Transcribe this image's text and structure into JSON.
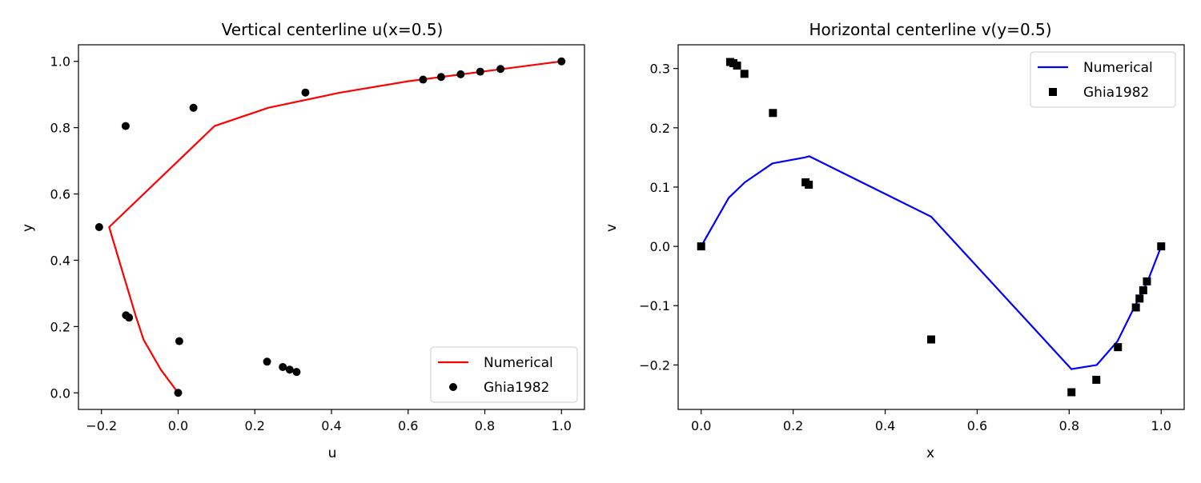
{
  "chart_data": [
    {
      "type": "line",
      "title": "Vertical centerline u(x=0.5)",
      "xlabel": "u",
      "ylabel": "y",
      "xlim": [
        -0.26,
        1.06
      ],
      "ylim": [
        -0.05,
        1.05
      ],
      "xticks": [
        "−0.2",
        "0.0",
        "0.2",
        "0.4",
        "0.6",
        "0.8",
        "1.0"
      ],
      "yticks": [
        "0.0",
        "0.2",
        "0.4",
        "0.6",
        "0.8",
        "1.0"
      ],
      "legend_position": "lower-right",
      "colors": {
        "line": "#ff0000",
        "markers": "#000000"
      },
      "series": [
        {
          "name": "Numerical",
          "kind": "line",
          "x": [
            0.0,
            -0.045,
            -0.09,
            -0.11,
            -0.18,
            0.095,
            0.235,
            0.42,
            0.6,
            1.0
          ],
          "y": [
            0.0,
            0.07,
            0.16,
            0.23,
            0.5,
            0.805,
            0.86,
            0.905,
            0.94,
            1.0
          ]
        },
        {
          "name": "Ghia1982",
          "kind": "scatter",
          "marker": "circle",
          "x": [
            0.0,
            0.003,
            -0.136,
            -0.128,
            -0.206,
            -0.137,
            0.04,
            0.332,
            0.639,
            0.686,
            0.737,
            0.788,
            0.841,
            1.0,
            0.232,
            0.273,
            0.291,
            0.309
          ],
          "y": [
            0.0,
            0.156,
            0.234,
            0.227,
            0.5,
            0.805,
            0.86,
            0.906,
            0.945,
            0.953,
            0.961,
            0.969,
            0.977,
            1.0,
            0.094,
            0.078,
            0.07,
            0.063
          ]
        }
      ]
    },
    {
      "type": "line",
      "title": "Horizontal centerline v(y=0.5)",
      "xlabel": "x",
      "ylabel": "v",
      "xlim": [
        -0.05,
        1.05
      ],
      "ylim": [
        -0.275,
        0.34
      ],
      "xticks": [
        "0.0",
        "0.2",
        "0.4",
        "0.6",
        "0.8",
        "1.0"
      ],
      "yticks": [
        "−0.2",
        "−0.1",
        "0.0",
        "0.1",
        "0.2",
        "0.3"
      ],
      "legend_position": "top-right",
      "colors": {
        "line": "#0000ff",
        "markers": "#000000"
      },
      "series": [
        {
          "name": "Numerical",
          "kind": "line",
          "x": [
            0.0,
            0.06,
            0.095,
            0.155,
            0.225,
            0.235,
            0.5,
            0.805,
            0.86,
            0.905,
            0.94,
            0.97,
            1.0
          ],
          "y": [
            0.0,
            0.082,
            0.108,
            0.14,
            0.15,
            0.152,
            0.05,
            -0.207,
            -0.2,
            -0.16,
            -0.105,
            -0.06,
            0.0
          ]
        },
        {
          "name": "Ghia1982",
          "kind": "scatter",
          "marker": "square",
          "x": [
            0.0,
            0.063,
            0.07,
            0.078,
            0.094,
            0.156,
            0.227,
            0.234,
            0.5,
            0.805,
            0.859,
            0.906,
            0.945,
            0.953,
            0.961,
            0.969,
            1.0
          ],
          "y": [
            0.0,
            0.311,
            0.309,
            0.305,
            0.291,
            0.225,
            0.108,
            0.104,
            -0.157,
            -0.246,
            -0.225,
            -0.17,
            -0.103,
            -0.088,
            -0.074,
            -0.059,
            0.0
          ]
        }
      ]
    }
  ]
}
